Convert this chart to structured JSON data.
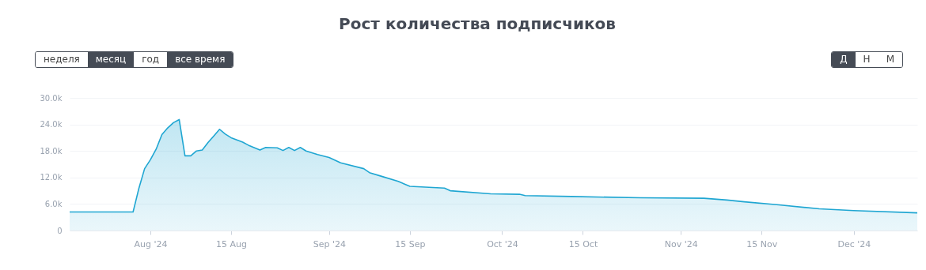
{
  "chart_data": {
    "type": "area",
    "title": "Рост количества подписчиков",
    "annotations": [
      "неделя",
      "месяц",
      "год",
      "все время",
      "Д",
      "Н",
      "М"
    ],
    "x": [
      "2024-07-18",
      "2024-07-29",
      "2024-07-30",
      "2024-07-31",
      "2024-08-01",
      "2024-08-02",
      "2024-08-03",
      "2024-08-04",
      "2024-08-05",
      "2024-08-06",
      "2024-08-07",
      "2024-08-08",
      "2024-08-09",
      "2024-08-10",
      "2024-08-11",
      "2024-08-12",
      "2024-08-13",
      "2024-08-14",
      "2024-08-15",
      "2024-08-17",
      "2024-08-18",
      "2024-08-20",
      "2024-08-21",
      "2024-08-23",
      "2024-08-24",
      "2024-08-25",
      "2024-08-26",
      "2024-08-27",
      "2024-08-28",
      "2024-08-30",
      "2024-09-01",
      "2024-09-03",
      "2024-09-07",
      "2024-09-08",
      "2024-09-10",
      "2024-09-13",
      "2024-09-15",
      "2024-09-21",
      "2024-09-22",
      "2024-09-29",
      "2024-10-04",
      "2024-10-05",
      "2024-10-13",
      "2024-10-25",
      "2024-11-05",
      "2024-11-09",
      "2024-11-12",
      "2024-11-18",
      "2024-11-25",
      "2024-12-01",
      "2024-12-12"
    ],
    "series": [
      {
        "color": "#1fa6d2",
        "values": [
          4200,
          4200,
          9500,
          14000,
          16000,
          18400,
          21700,
          23200,
          24400,
          25100,
          16900,
          16900,
          18000,
          18200,
          19900,
          21400,
          22900,
          21800,
          21000,
          20000,
          19300,
          18200,
          18800,
          18700,
          18100,
          18800,
          18100,
          18800,
          18000,
          17200,
          16500,
          15300,
          14000,
          13100,
          12300,
          11100,
          10000,
          9600,
          9000,
          8300,
          8200,
          7900,
          7700,
          7400,
          7300,
          6900,
          6500,
          5800,
          4900,
          4500,
          4000
        ]
      }
    ],
    "xlim": [
      "2024-07-18",
      "2024-12-12"
    ],
    "xticks": [
      {
        "value": "2024-08-01",
        "label": "Aug '24"
      },
      {
        "value": "2024-08-15",
        "label": "15 Aug"
      },
      {
        "value": "2024-09-01",
        "label": "Sep '24"
      },
      {
        "value": "2024-09-15",
        "label": "15 Sep"
      },
      {
        "value": "2024-10-01",
        "label": "Oct '24"
      },
      {
        "value": "2024-10-15",
        "label": "15 Oct"
      },
      {
        "value": "2024-11-01",
        "label": "Nov '24"
      },
      {
        "value": "2024-11-15",
        "label": "15 Nov"
      },
      {
        "value": "2024-12-01",
        "label": "Dec '24"
      }
    ],
    "ylim": [
      0,
      30000
    ],
    "yticks": [
      0,
      {
        "value": 6000,
        "label": "6.0k"
      },
      {
        "value": 12000,
        "label": "12.0k"
      },
      {
        "value": 18000,
        "label": "18.0k"
      },
      {
        "value": 24000,
        "label": "24.0k"
      },
      {
        "value": 30000,
        "label": "30.0k"
      }
    ],
    "grid": "y"
  }
}
